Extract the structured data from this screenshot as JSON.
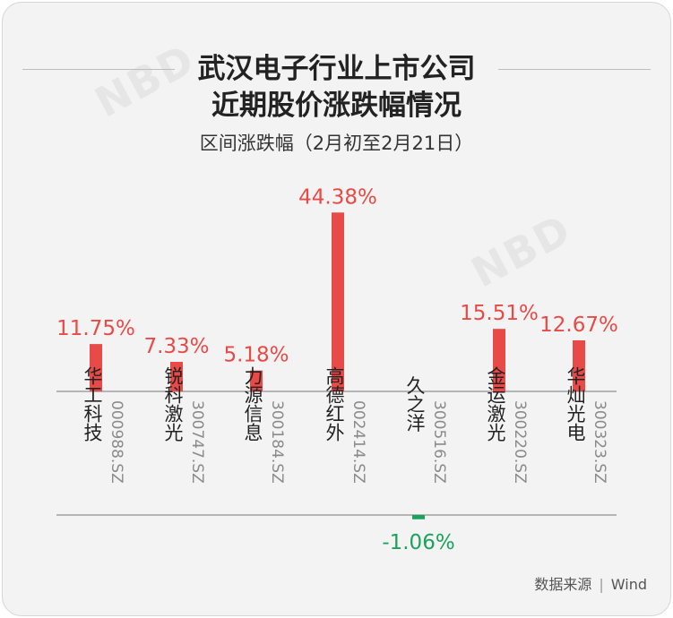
{
  "header": {
    "title_line1": "武汉电子行业上市公司",
    "title_line2": "近期股价涨跌幅情况",
    "subtitle": "区间涨跌幅（2月初至2月21日）"
  },
  "watermark": {
    "text": "NBD"
  },
  "source": {
    "label": "数据来源",
    "value": "Wind"
  },
  "colors": {
    "positive": "#e84a47",
    "negative": "#1aa35a",
    "axis": "#777777",
    "code": "#8a8a8a"
  },
  "chart_data": {
    "type": "bar",
    "categories": [
      "华工科技",
      "锐科激光",
      "力源信息",
      "高德红外",
      "久之洋",
      "金运激光",
      "华灿光电"
    ],
    "codes": [
      "000988.SZ",
      "300747.SZ",
      "300184.SZ",
      "002414.SZ",
      "300516.SZ",
      "300220.SZ",
      "300323.SZ"
    ],
    "values": [
      11.75,
      7.33,
      5.18,
      44.38,
      -1.06,
      15.51,
      12.67
    ],
    "data_labels": [
      "11.75%",
      "7.33%",
      "5.18%",
      "44.38%",
      "-1.06%",
      "15.51%",
      "12.67%"
    ]
  }
}
